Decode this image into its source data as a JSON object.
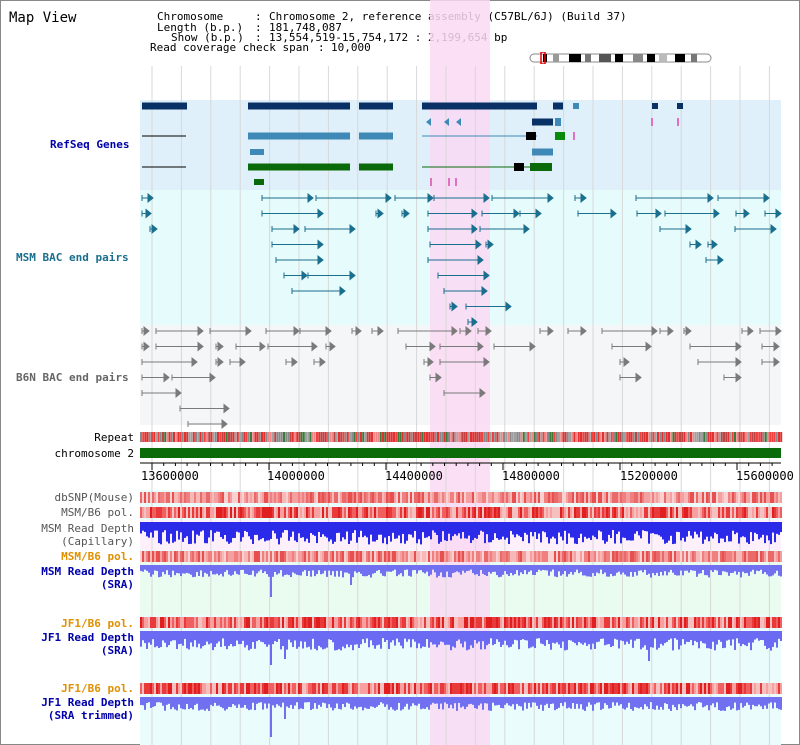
{
  "page": {
    "title": "Map View"
  },
  "info": {
    "chromosome_key": "Chromosome",
    "chromosome_value": "Chromosome 2, reference assembly (C57BL/6J) (Build 37)",
    "length_key": "Length (b.p.)",
    "length_value": "181,748,087",
    "show_key": "Show (b.p.)",
    "show_value": "13,554,519-15,754,172 : 2,199,654 bp",
    "coverage_key": "Read coverage check span",
    "coverage_value": "10,000"
  },
  "tracks": {
    "refseq": "RefSeq Genes",
    "msm_bac": "MSM BAC end pairs",
    "b6n_bac": "B6N BAC end pairs",
    "repeat": "Repeat",
    "chromosome": "chromosome 2",
    "dbsnp": "dbSNP(Mouse)",
    "msm_b6_pol_1": "MSM/B6 pol.",
    "msm_depth_cap_1": "MSM Read Depth",
    "msm_depth_cap_2": "(Capillary)",
    "msm_b6_pol_2": "MSM/B6 pol.",
    "msm_depth_sra_1": "MSM Read Depth",
    "msm_depth_sra_2": "(SRA)",
    "jf1_b6_pol_1": "JF1/B6 pol.",
    "jf1_depth_sra_1": "JF1 Read Depth",
    "jf1_depth_sra_2": "(SRA)",
    "jf1_b6_pol_2": "JF1/B6 pol.",
    "jf1_depth_trim_1": "JF1 Read Depth",
    "jf1_depth_trim_2": "(SRA trimmed)"
  },
  "axis": {
    "ticks": [
      "13600000",
      "14000000",
      "14400000",
      "14800000",
      "15200000",
      "15600000"
    ]
  },
  "colors": {
    "refseq_bg": "#dff0fb",
    "bac_bg": "#e6fbfb",
    "highlight": "#f9d9f3",
    "refseq_dark": "#0a3166",
    "refseq_mid": "#3f89b6",
    "refseq_green": "#0a6a0a",
    "msm_bac": "#1a6e8e",
    "b6n_bac": "#7a7a7a",
    "chromosome_bar": "#0b6b0b",
    "depth_blue": "#3a3af0",
    "pol_label_orange": "#e09000",
    "label_blue": "#0000aa"
  }
}
